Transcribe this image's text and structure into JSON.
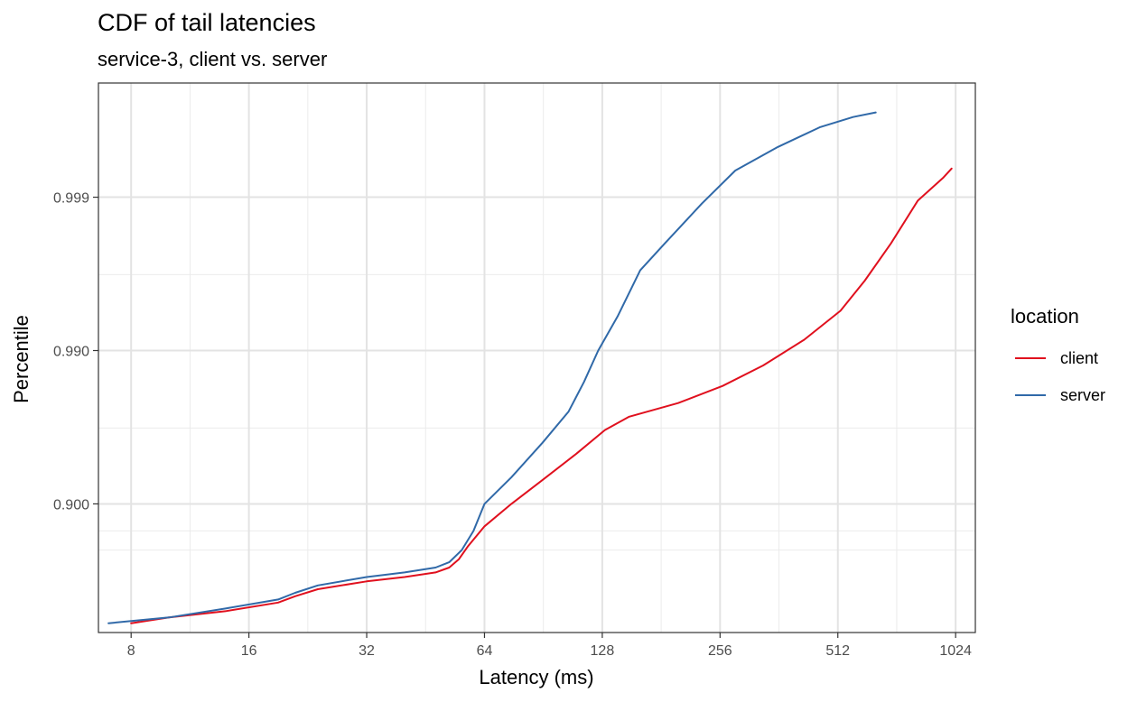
{
  "chart_data": {
    "type": "line",
    "title": "CDF of tail latencies",
    "subtitle": "service-3, client vs. server",
    "xlabel": "Latency (ms)",
    "ylabel": "Percentile",
    "x_scale": "log2",
    "y_scale": "tail-percentile (-log10(1-p))",
    "xlim": [
      6.6,
      1150
    ],
    "ylim": [
      0.31,
      0.99982
    ],
    "x_ticks": [
      8,
      16,
      32,
      64,
      128,
      256,
      512,
      1024
    ],
    "x_tick_labels": [
      "8",
      "16",
      "32",
      "64",
      "128",
      "256",
      "512",
      "1024"
    ],
    "y_ticks": [
      0.9,
      0.99,
      0.999
    ],
    "y_tick_labels": [
      "0.900",
      "0.990",
      "0.999"
    ],
    "y_minor_ticks": [
      0.8,
      0.85,
      0.968,
      0.9968
    ],
    "grid": true,
    "legend": {
      "title": "location",
      "placement": "right"
    },
    "series": [
      {
        "name": "client",
        "color": "#e0101e",
        "points": [
          [
            8,
            0.4
          ],
          [
            10,
            0.45
          ],
          [
            14,
            0.5
          ],
          [
            19,
            0.56
          ],
          [
            21,
            0.6
          ],
          [
            24,
            0.64
          ],
          [
            32,
            0.68
          ],
          [
            40,
            0.7
          ],
          [
            48,
            0.72
          ],
          [
            52,
            0.74
          ],
          [
            55,
            0.77
          ],
          [
            58,
            0.81
          ],
          [
            64,
            0.86
          ],
          [
            75,
            0.9
          ],
          [
            90,
            0.93
          ],
          [
            110,
            0.953
          ],
          [
            130,
            0.967
          ],
          [
            150,
            0.973
          ],
          [
            200,
            0.978
          ],
          [
            260,
            0.983
          ],
          [
            330,
            0.9875
          ],
          [
            420,
            0.9915
          ],
          [
            520,
            0.9945
          ],
          [
            600,
            0.9965
          ],
          [
            700,
            0.998
          ],
          [
            820,
            0.99895
          ],
          [
            950,
            0.99925
          ],
          [
            1000,
            0.99935
          ]
        ]
      },
      {
        "name": "server",
        "color": "#3069a8",
        "points": [
          [
            7,
            0.4
          ],
          [
            10,
            0.45
          ],
          [
            14,
            0.52
          ],
          [
            19,
            0.58
          ],
          [
            21,
            0.62
          ],
          [
            24,
            0.66
          ],
          [
            32,
            0.7
          ],
          [
            40,
            0.72
          ],
          [
            48,
            0.74
          ],
          [
            52,
            0.76
          ],
          [
            56,
            0.8
          ],
          [
            60,
            0.85
          ],
          [
            64,
            0.9
          ],
          [
            75,
            0.933
          ],
          [
            90,
            0.96
          ],
          [
            105,
            0.975
          ],
          [
            115,
            0.984
          ],
          [
            125,
            0.99
          ],
          [
            140,
            0.994
          ],
          [
            160,
            0.997
          ],
          [
            185,
            0.998
          ],
          [
            230,
            0.9989
          ],
          [
            280,
            0.99933
          ],
          [
            360,
            0.99953
          ],
          [
            460,
            0.99965
          ],
          [
            560,
            0.9997
          ],
          [
            640,
            0.99972
          ]
        ]
      }
    ]
  }
}
